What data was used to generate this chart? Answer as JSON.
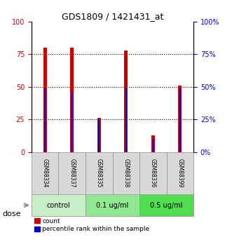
{
  "title": "GDS1809 / 1421431_at",
  "samples": [
    "GSM88334",
    "GSM88337",
    "GSM88335",
    "GSM88338",
    "GSM88336",
    "GSM88399"
  ],
  "red_values": [
    80,
    80,
    26,
    78,
    13,
    51
  ],
  "blue_values": [
    49,
    46,
    25,
    49,
    10,
    49
  ],
  "groups": [
    {
      "label": "control",
      "indices": [
        0,
        1
      ],
      "color": "#c8f0c8"
    },
    {
      "label": "0.1 ug/ml",
      "indices": [
        2,
        3
      ],
      "color": "#90e890"
    },
    {
      "label": "0.5 ug/ml",
      "indices": [
        4,
        5
      ],
      "color": "#50dd50"
    }
  ],
  "ylim": [
    0,
    100
  ],
  "yticks": [
    0,
    25,
    50,
    75,
    100
  ],
  "red_color": "#cc0000",
  "blue_color": "#0000cc",
  "left_axis_color": "#cc0000",
  "right_axis_color": "#0000cc",
  "red_bar_width": 0.12,
  "blue_bar_width": 0.04,
  "legend_labels": [
    "count",
    "percentile rank within the sample"
  ],
  "dose_label": "dose",
  "xlabel_bg": "#d8d8d8"
}
